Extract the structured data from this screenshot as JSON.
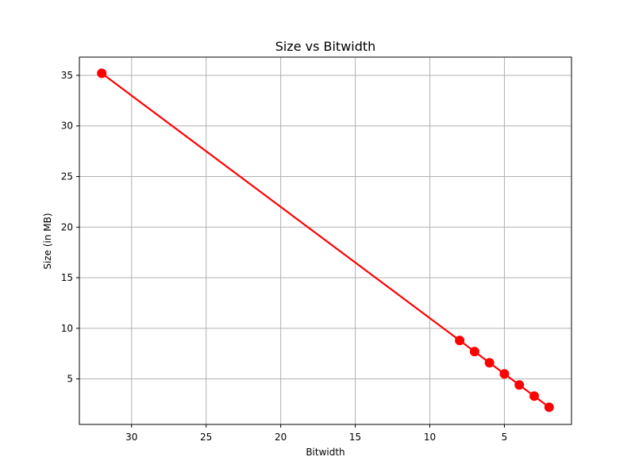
{
  "chart_data": {
    "type": "line",
    "title": "Size vs Bitwidth",
    "xlabel": "Bitwidth",
    "ylabel": "Size (in MB)",
    "x_reversed": true,
    "xlim": [
      33.5,
      0.5
    ],
    "ylim": [
      0.5,
      36.8
    ],
    "x_ticks": [
      30,
      25,
      20,
      15,
      10,
      5
    ],
    "y_ticks": [
      5,
      10,
      15,
      20,
      25,
      30,
      35
    ],
    "x_tick_labels": [
      "30",
      "25",
      "20",
      "15",
      "10",
      "5"
    ],
    "y_tick_labels": [
      "5",
      "10",
      "15",
      "20",
      "25",
      "30",
      "35"
    ],
    "grid": true,
    "legend": false,
    "series": [
      {
        "color": "#ff0000",
        "marker": "circle",
        "x": [
          32,
          8,
          7,
          6,
          5,
          4,
          3,
          2
        ],
        "y": [
          35.2,
          8.8,
          7.7,
          6.6,
          5.5,
          4.4,
          3.3,
          2.2
        ]
      }
    ],
    "colors": {
      "grid": "#b0b0b0",
      "axes": "#000000",
      "background": "#ffffff"
    }
  }
}
